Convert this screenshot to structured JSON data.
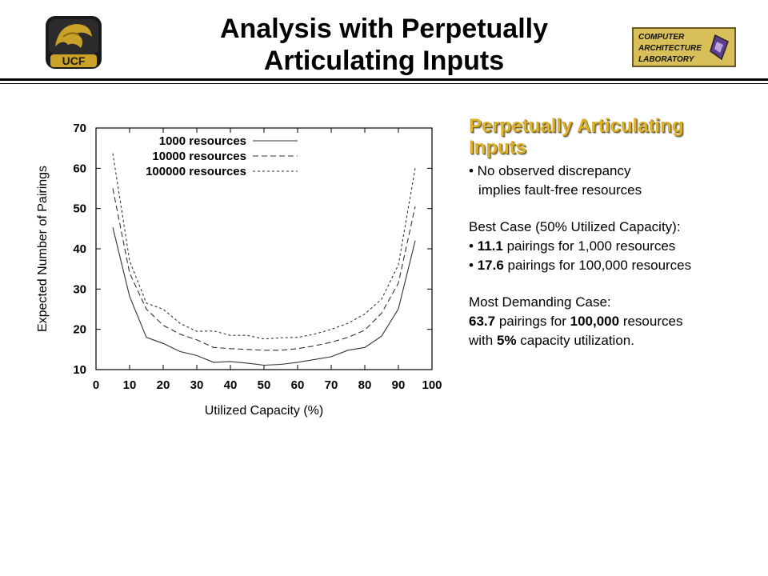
{
  "header": {
    "title_line1": "Analysis with Perpetually",
    "title_line2": "Articulating Inputs",
    "ucf_logo_text": "UCF",
    "lab_logo_lines": [
      "COMPUTER",
      "ARCHITECTURE",
      "LABORATORY"
    ]
  },
  "panel": {
    "heading_line1": "Perpetually Articulating",
    "heading_line2": "Inputs",
    "bullet1_line1": "• No observed discrepancy",
    "bullet1_line2": "implies fault-free resources",
    "best_case_title": "Best Case (50% Utilized Capacity):",
    "best_case_items": [
      {
        "prefix": "• ",
        "value": "11.1",
        "text": " pairings for 1,000 resources"
      },
      {
        "prefix": "• ",
        "value": "17.6",
        "text": " pairings for 100,000 resources"
      }
    ],
    "demanding_title": "Most Demanding Case:",
    "demanding_value": "63.7",
    "demanding_mid": " pairings for ",
    "demanding_resources": "100,000",
    "demanding_end": " resources",
    "demanding_line2_start": "with ",
    "demanding_pct": "5%",
    "demanding_line2_end": " capacity utilization."
  },
  "chart_data": {
    "type": "line",
    "xlabel": "Utilized Capacity (%)",
    "ylabel": "Expected Number of Pairings",
    "xlim": [
      0,
      100
    ],
    "ylim": [
      10,
      70
    ],
    "xticks": [
      0,
      10,
      20,
      30,
      40,
      50,
      60,
      70,
      80,
      90,
      100
    ],
    "yticks": [
      10,
      20,
      30,
      40,
      50,
      60,
      70
    ],
    "legend_position": "top-left",
    "grid": false,
    "x": [
      5,
      10,
      15,
      20,
      25,
      30,
      35,
      40,
      45,
      50,
      55,
      60,
      65,
      70,
      75,
      80,
      85,
      90,
      95
    ],
    "series": [
      {
        "name": "1000 resources",
        "style": "solid",
        "values": [
          45.3,
          28.2,
          18.0,
          16.5,
          14.5,
          13.5,
          11.8,
          12.0,
          11.6,
          11.1,
          11.3,
          11.8,
          12.5,
          13.2,
          14.8,
          15.5,
          18.3,
          25.1,
          42.0
        ]
      },
      {
        "name": "10000 resources",
        "style": "dashed",
        "values": [
          55.0,
          34.0,
          25.0,
          21.0,
          18.8,
          17.4,
          15.5,
          15.2,
          15.0,
          14.8,
          14.8,
          15.2,
          15.9,
          16.8,
          18.0,
          19.8,
          24.0,
          31.5,
          50.5
        ]
      },
      {
        "name": "100000 resources",
        "style": "dotted",
        "values": [
          63.7,
          37.0,
          26.5,
          25.0,
          21.5,
          19.5,
          19.6,
          18.5,
          18.5,
          17.6,
          17.9,
          18.0,
          18.8,
          20.0,
          21.5,
          23.8,
          27.5,
          36.0,
          60.0
        ]
      }
    ]
  }
}
